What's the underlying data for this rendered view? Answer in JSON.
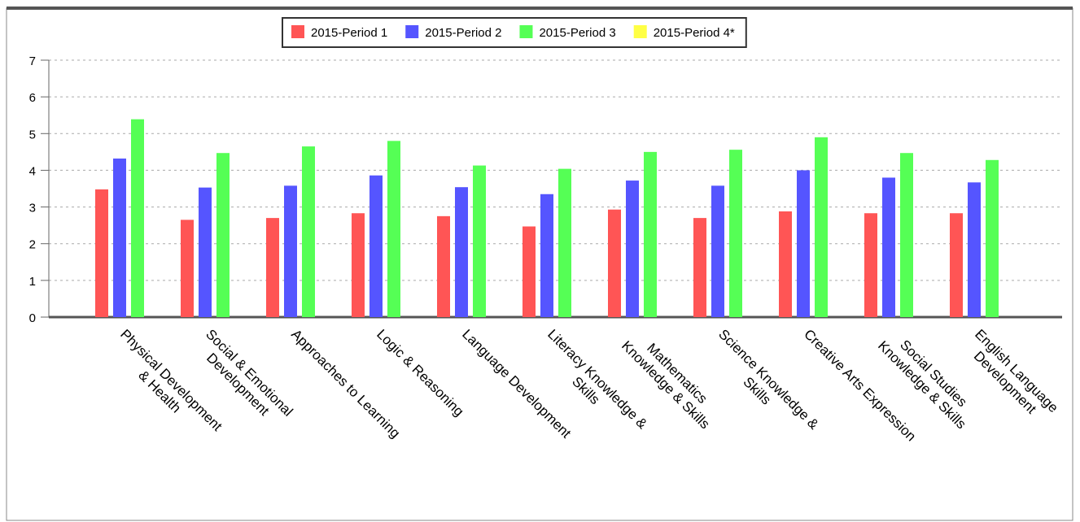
{
  "chart_data": {
    "type": "bar",
    "categories": [
      "Physical Development\n& Health",
      "Social & Emotional\nDevelopment",
      "Approaches to Learning",
      "Logic & Reasoning",
      "Language Development",
      "Literacy Knowledge &\nSkills",
      "Mathematics\nKnowledge & Skills",
      "Science Knowledge &\nSkills",
      "Creative Arts Expression",
      "Social Studies\nKnowledge & Skills",
      "English Language\nDevelopment"
    ],
    "series": [
      {
        "name": "2015-Period 1",
        "color": "#ff5555",
        "values": [
          3.48,
          2.65,
          2.7,
          2.83,
          2.75,
          2.47,
          2.93,
          2.7,
          2.88,
          2.83,
          2.83
        ]
      },
      {
        "name": "2015-Period 2",
        "color": "#5555ff",
        "values": [
          4.32,
          3.53,
          3.58,
          3.86,
          3.54,
          3.35,
          3.72,
          3.58,
          4.0,
          3.8,
          3.67
        ]
      },
      {
        "name": "2015-Period 3",
        "color": "#55ff55",
        "values": [
          5.39,
          4.47,
          4.65,
          4.8,
          4.13,
          4.04,
          4.5,
          4.56,
          4.9,
          4.47,
          4.28
        ]
      },
      {
        "name": "2015-Period 4*",
        "color": "#ffff44",
        "values": [
          null,
          null,
          null,
          null,
          null,
          null,
          null,
          null,
          null,
          null,
          null
        ]
      }
    ],
    "ylim": [
      0,
      7
    ],
    "yticks": [
      0,
      1,
      2,
      3,
      4,
      5,
      6,
      7
    ],
    "grid": true,
    "legend": "top"
  }
}
